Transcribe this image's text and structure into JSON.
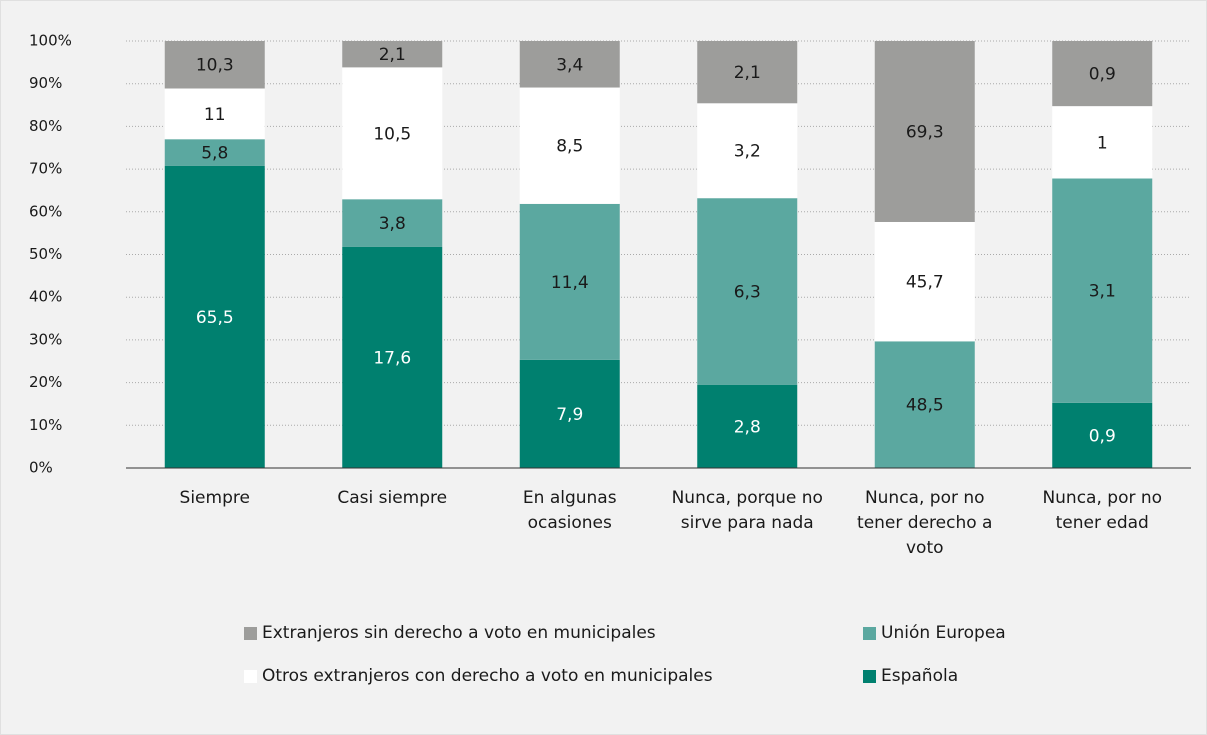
{
  "chart_data": {
    "type": "bar",
    "stacking": "percent",
    "categories": [
      "Siempre",
      "Casi siempre",
      "En algunas ocasiones",
      "Nunca, porque no sirve para nada",
      "Nunca, por no tener derecho a voto",
      "Nunca, por no tener edad"
    ],
    "series": [
      {
        "name": "Española",
        "color": "#00806f",
        "label_color": "#ffffff",
        "values": [
          65.5,
          17.6,
          7.9,
          2.8,
          null,
          0.9
        ],
        "value_labels": [
          "65,5",
          "17,6",
          "7,9",
          "2,8",
          null,
          "0,9"
        ]
      },
      {
        "name": "Unión Europea",
        "color": "#5ba8a0",
        "label_color": "#1a1a1a",
        "values": [
          5.8,
          3.8,
          11.4,
          6.3,
          48.5,
          3.1
        ],
        "value_labels": [
          "5,8",
          "3,8",
          "11,4",
          "6,3",
          "48,5",
          "3,1"
        ]
      },
      {
        "name": "Otros extranjeros con derecho a voto en municipales",
        "color": "#ffffff",
        "label_color": "#1a1a1a",
        "values": [
          11,
          10.5,
          8.5,
          3.2,
          45.7,
          1
        ],
        "value_labels": [
          "11",
          "10,5",
          "8,5",
          "3,2",
          "45,7",
          "1"
        ]
      },
      {
        "name": "Extranjeros sin derecho a voto en municipales",
        "color": "#9d9d9b",
        "label_color": "#1a1a1a",
        "values": [
          10.3,
          2.1,
          3.4,
          2.1,
          69.3,
          0.9
        ],
        "value_labels": [
          "10,3",
          "2,1",
          "3,4",
          "2,1",
          "69,3",
          "0,9"
        ]
      }
    ],
    "ylim": [
      0,
      100
    ],
    "yticks": [
      {
        "value": 0,
        "label": "0%"
      },
      {
        "value": 10,
        "label": "10%"
      },
      {
        "value": 20,
        "label": "20%"
      },
      {
        "value": 30,
        "label": "30%"
      },
      {
        "value": 40,
        "label": "40%"
      },
      {
        "value": 50,
        "label": "50%"
      },
      {
        "value": 60,
        "label": "60%"
      },
      {
        "value": 70,
        "label": "70%"
      },
      {
        "value": 80,
        "label": "80%"
      },
      {
        "value": 90,
        "label": "90%"
      },
      {
        "value": 100,
        "label": "100%"
      }
    ],
    "grid": true
  }
}
